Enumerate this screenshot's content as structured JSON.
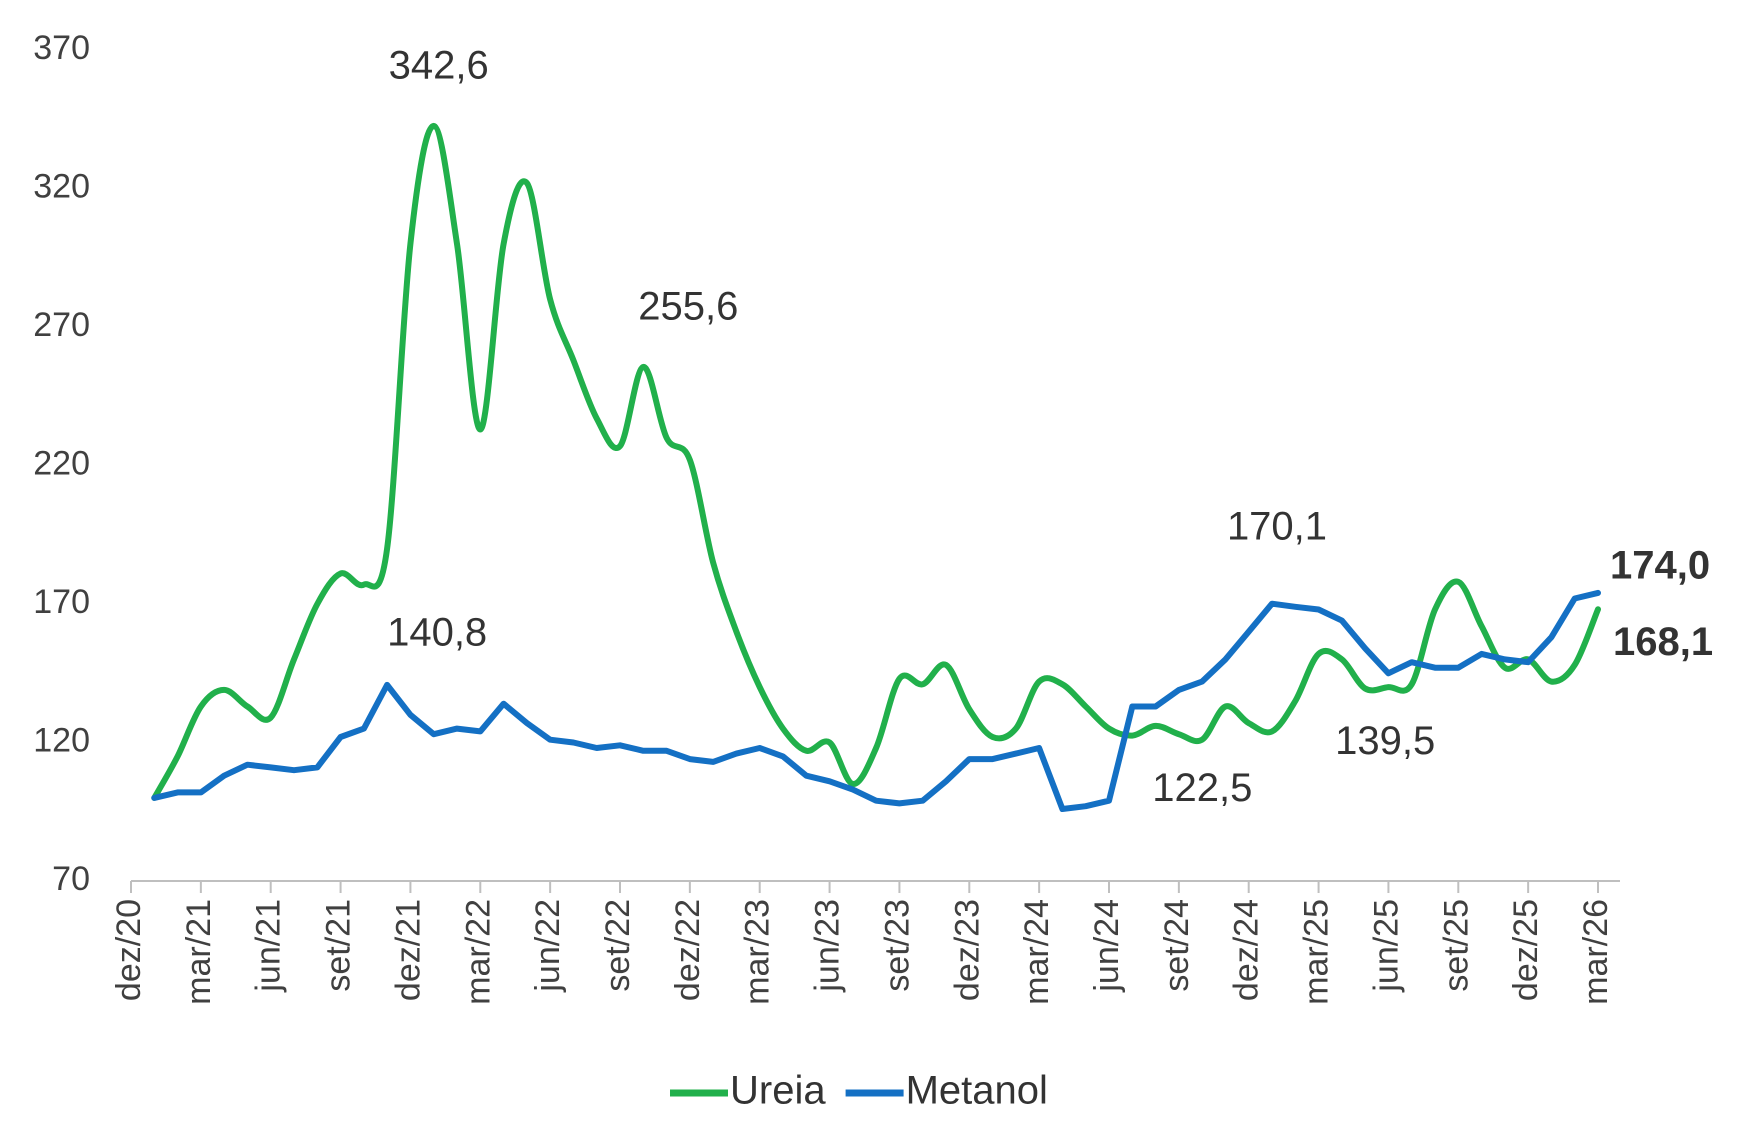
{
  "chart_data": {
    "type": "line",
    "categories": [
      "dez/20",
      null,
      null,
      "mar/21",
      null,
      null,
      "jun/21",
      null,
      null,
      "set/21",
      null,
      null,
      "dez/21",
      null,
      null,
      "mar/22",
      null,
      null,
      "jun/22",
      null,
      null,
      "set/22",
      null,
      null,
      "dez/22",
      null,
      null,
      "mar/23",
      null,
      null,
      "jun/23",
      null,
      null,
      "set/23",
      null,
      null,
      "dez/23",
      null,
      null,
      "mar/24",
      null,
      null,
      "jun/24",
      null,
      null,
      "set/24",
      null,
      null,
      "dez/24",
      null,
      null,
      "mar/25",
      null,
      null,
      "jun/25",
      null,
      null,
      "set/25",
      null,
      null,
      "dez/25",
      null,
      null,
      "mar/26"
    ],
    "series": [
      {
        "name": "Ureia",
        "color": "#21b04b",
        "smooth": true,
        "values": [
          null,
          100,
          115,
          133,
          139,
          133,
          129,
          150,
          170,
          181,
          177,
          190,
          300,
          342.6,
          300,
          233,
          300,
          322,
          280,
          258,
          237,
          227,
          255.6,
          230,
          222,
          185,
          160,
          140,
          125,
          117,
          120,
          105,
          118,
          143,
          141,
          148,
          132,
          122,
          125,
          142,
          141,
          133,
          125,
          122.5,
          126,
          123,
          121,
          133,
          127,
          124,
          135,
          152,
          150,
          139.5,
          140,
          141,
          168,
          178,
          162,
          147,
          150,
          142,
          148,
          168.1
        ],
        "value_labels": [
          null,
          null,
          null,
          null,
          null,
          null,
          null,
          null,
          null,
          null,
          null,
          null,
          null,
          "342,6",
          null,
          null,
          null,
          null,
          null,
          null,
          null,
          null,
          "255,6",
          null,
          null,
          null,
          null,
          null,
          null,
          null,
          null,
          null,
          null,
          null,
          null,
          null,
          null,
          null,
          null,
          null,
          null,
          null,
          null,
          "122,5",
          null,
          null,
          null,
          null,
          null,
          null,
          null,
          null,
          null,
          "139,5",
          null,
          null,
          null,
          null,
          null,
          null,
          null,
          null,
          null,
          "168,1"
        ]
      },
      {
        "name": "Metanol",
        "color": "#1470c4",
        "smooth": false,
        "values": [
          null,
          100,
          102,
          102,
          108,
          112,
          111,
          110,
          111,
          122,
          125,
          140.8,
          130,
          123,
          125,
          124,
          134,
          127,
          121,
          120,
          118,
          119,
          117,
          117,
          114,
          113,
          116,
          118,
          115,
          108,
          106,
          103,
          99,
          98,
          99,
          106,
          114,
          114,
          116,
          118,
          96,
          97,
          99,
          133,
          133,
          139,
          142,
          150,
          160,
          170.1,
          169,
          168,
          164,
          154,
          145,
          149,
          147,
          147,
          152,
          150,
          149,
          158,
          172,
          174.0
        ],
        "value_labels": [
          null,
          null,
          null,
          null,
          null,
          null,
          null,
          null,
          null,
          null,
          null,
          "140,8",
          null,
          null,
          null,
          null,
          null,
          null,
          null,
          null,
          null,
          null,
          null,
          null,
          null,
          null,
          null,
          null,
          null,
          null,
          null,
          null,
          null,
          null,
          null,
          null,
          null,
          null,
          null,
          null,
          null,
          null,
          null,
          null,
          null,
          null,
          null,
          null,
          null,
          "170,1",
          null,
          null,
          null,
          null,
          null,
          null,
          null,
          null,
          null,
          null,
          null,
          null,
          null,
          "174,0"
        ]
      }
    ],
    "ylim": [
      70,
      370
    ],
    "yticks": [
      70,
      120,
      170,
      220,
      270,
      320,
      370
    ],
    "grid": false,
    "legend": "bottom"
  }
}
